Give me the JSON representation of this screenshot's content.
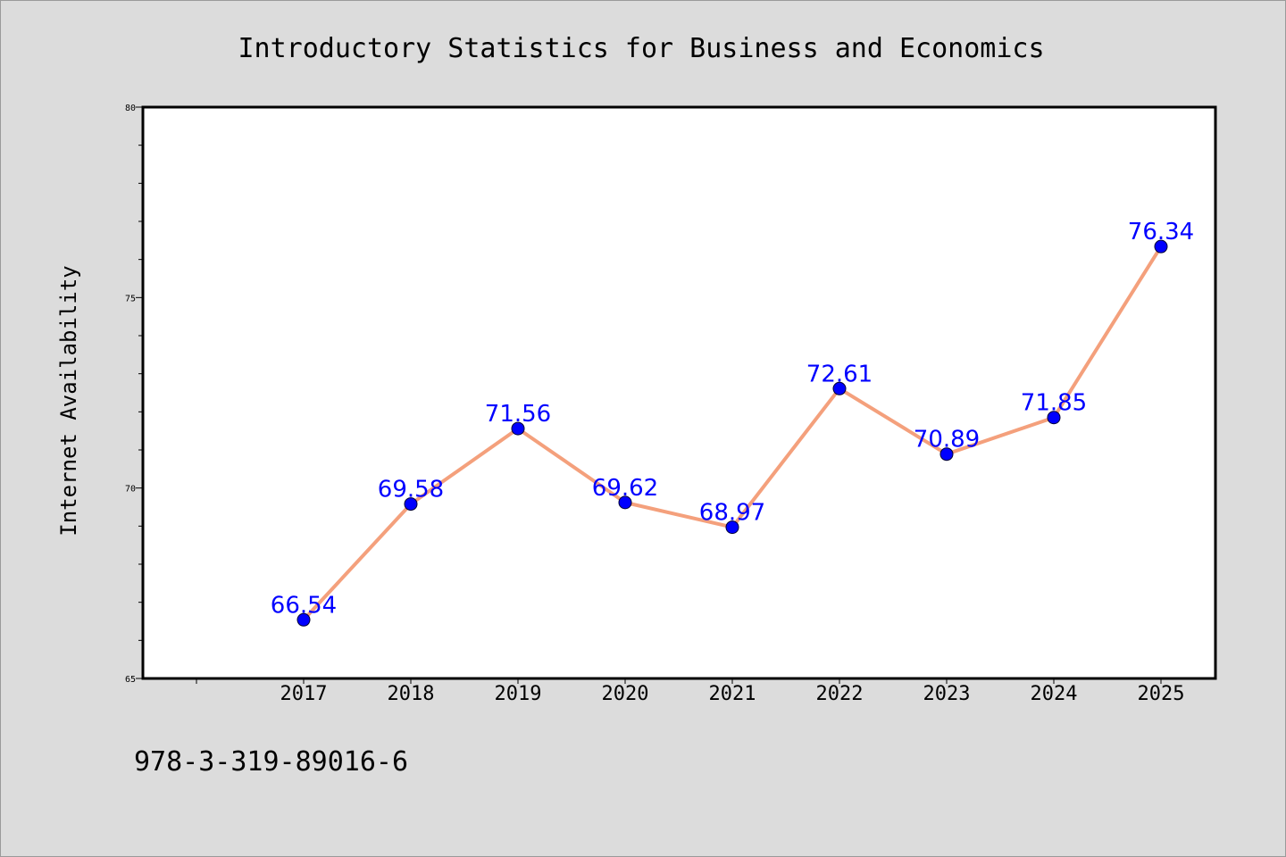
{
  "chart_data": {
    "type": "line",
    "title": "Introductory Statistics for Business and Economics",
    "xlabel": "",
    "ylabel": "Internet Availability",
    "x": [
      "2017",
      "2018",
      "2019",
      "2020",
      "2021",
      "2022",
      "2023",
      "2024",
      "2025"
    ],
    "series": [
      {
        "values": [
          66.54,
          69.58,
          71.56,
          69.62,
          68.97,
          72.61,
          70.89,
          71.85,
          76.34
        ],
        "labels": [
          "66.54",
          "69.58",
          "71.56",
          "69.62",
          "68.97",
          "72.61",
          "70.89",
          "71.85",
          "76.34"
        ],
        "line_color": "#f4a07c",
        "marker_color": "#0000ff",
        "label_color": "#0000ff"
      }
    ],
    "ylim": [
      65,
      80
    ],
    "yticks": [
      "65",
      "70",
      "75",
      "80"
    ],
    "grid": false,
    "legend": "none"
  },
  "footer": {
    "isbn": "978-3-319-89016-6"
  }
}
